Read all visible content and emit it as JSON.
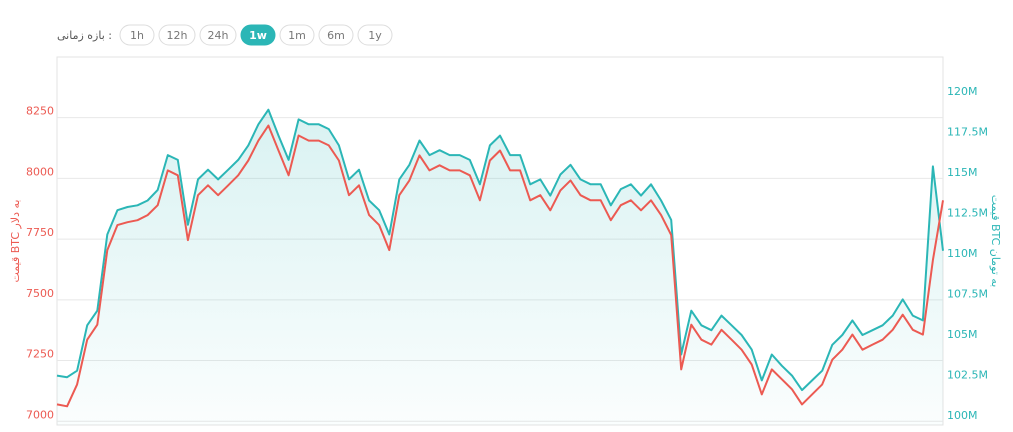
{
  "controls": {
    "label": "بازه زمانی :",
    "options": [
      "1h",
      "12h",
      "24h",
      "1w",
      "1m",
      "6m",
      "1y"
    ],
    "active": 3
  },
  "chart_data": {
    "type": "line",
    "y_label": "قیمت BTC به دلار",
    "y2_label": "قیمت BTC به تومان",
    "ylim": [
      6960,
      8475
    ],
    "yticks": [
      7000,
      7250,
      7500,
      7750,
      8000,
      8250
    ],
    "y2lim": [
      99.45,
      122.15
    ],
    "y2ticks": [
      {
        "value": 100,
        "label": "100M"
      },
      {
        "value": 102.5,
        "label": "102.5M"
      },
      {
        "value": 105,
        "label": "105M"
      },
      {
        "value": 107.5,
        "label": "107.5M"
      },
      {
        "value": 110,
        "label": "110M"
      },
      {
        "value": 112.5,
        "label": "112.5M"
      },
      {
        "value": 115,
        "label": "115M"
      },
      {
        "value": 117.5,
        "label": "117.5M"
      },
      {
        "value": 120,
        "label": "120M"
      }
    ],
    "grid": true,
    "series": [
      {
        "name": "USD",
        "color": "#ec5a52",
        "values": [
          7045,
          7037,
          7127,
          7311,
          7373,
          7680,
          7783,
          7795,
          7803,
          7824,
          7865,
          8008,
          7988,
          7721,
          7906,
          7947,
          7906,
          7947,
          7988,
          8049,
          8131,
          8193,
          8090,
          7988,
          8152,
          8131,
          8131,
          8111,
          8049,
          7906,
          7947,
          7824,
          7783,
          7680,
          7906,
          7967,
          8070,
          8008,
          8029,
          8008,
          8008,
          7988,
          7885,
          8049,
          8090,
          8008,
          8008,
          7885,
          7906,
          7844,
          7926,
          7967,
          7906,
          7885,
          7885,
          7803,
          7865,
          7885,
          7844,
          7885,
          7824,
          7742,
          7189,
          7373,
          7311,
          7291,
          7352,
          7311,
          7270,
          7209,
          7086,
          7189,
          7148,
          7107,
          7045,
          7086,
          7127,
          7229,
          7270,
          7332,
          7270,
          7291,
          7311,
          7352,
          7414,
          7352,
          7332,
          7639,
          7885
        ]
      },
      {
        "name": "IRT",
        "color": "#2bb6b6",
        "axis": "y2",
        "values": [
          102.5,
          102.4,
          102.8,
          105.6,
          106.5,
          111.2,
          112.7,
          112.9,
          113.0,
          113.3,
          113.95,
          116.1,
          115.8,
          111.8,
          114.6,
          115.2,
          114.6,
          115.2,
          115.8,
          116.7,
          118.0,
          118.9,
          117.3,
          115.8,
          118.3,
          118.0,
          118.0,
          117.7,
          116.7,
          114.6,
          115.2,
          113.3,
          112.7,
          111.2,
          114.6,
          115.5,
          117.0,
          116.1,
          116.4,
          116.1,
          116.1,
          115.8,
          114.3,
          116.7,
          117.3,
          116.1,
          116.1,
          114.3,
          114.6,
          113.6,
          114.9,
          115.5,
          114.6,
          114.3,
          114.3,
          113.0,
          114.0,
          114.3,
          113.6,
          114.3,
          113.3,
          112.1,
          103.8,
          106.5,
          105.6,
          105.3,
          106.2,
          105.6,
          105.0,
          104.1,
          102.2,
          103.8,
          103.1,
          102.5,
          101.6,
          102.2,
          102.8,
          104.4,
          105.0,
          105.9,
          105.0,
          105.3,
          105.6,
          106.2,
          107.2,
          106.2,
          105.9,
          115.4,
          110.2
        ]
      }
    ]
  }
}
